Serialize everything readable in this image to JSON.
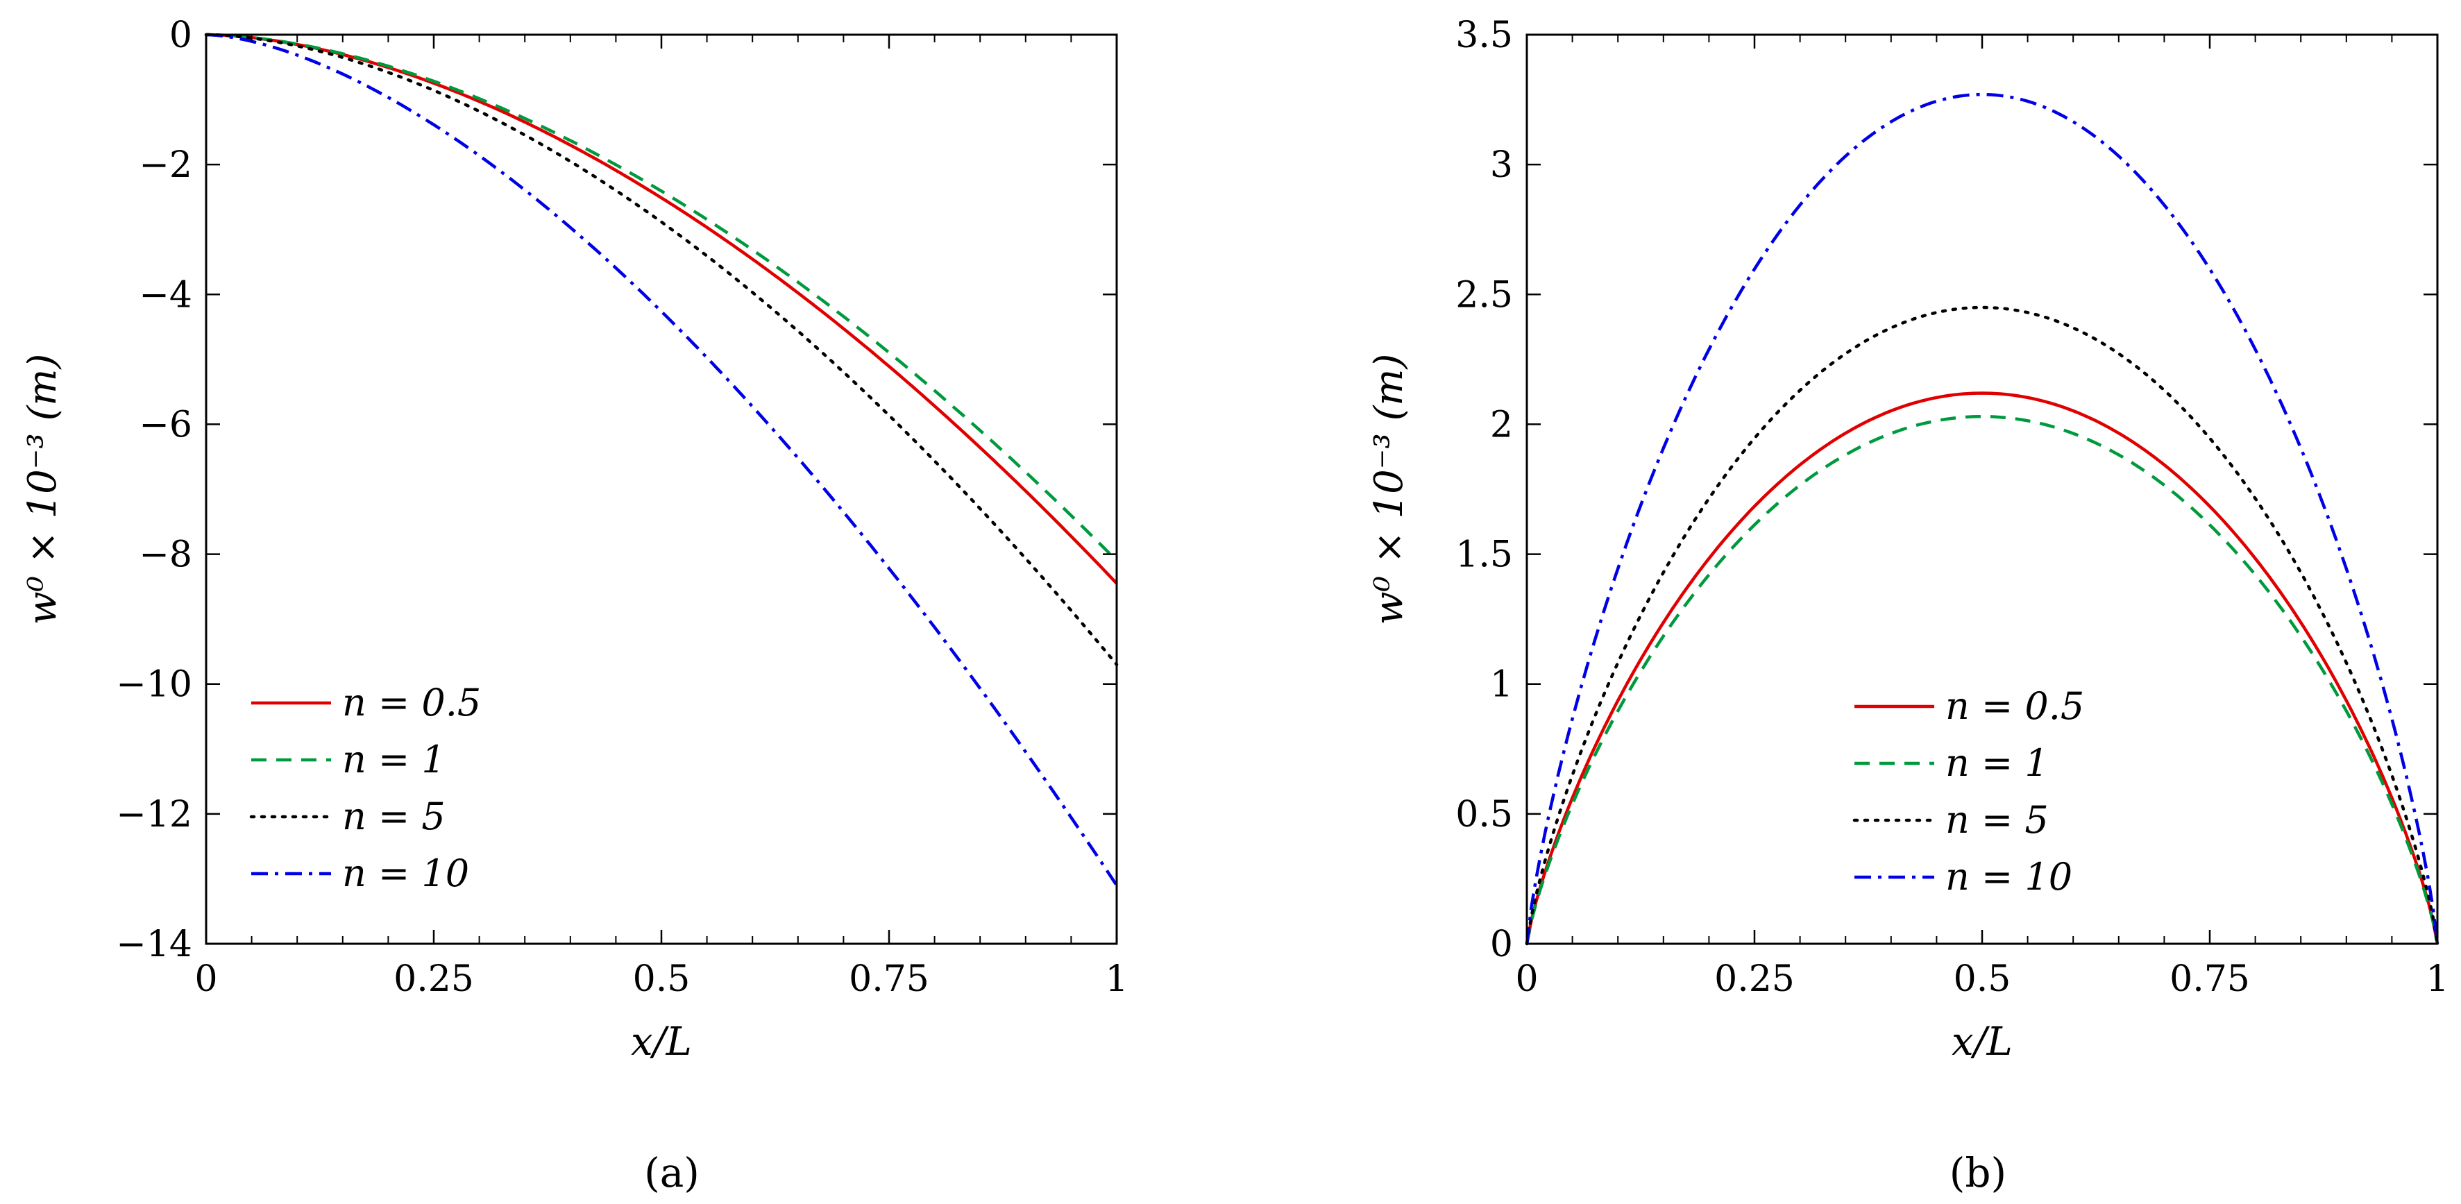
{
  "chart_data": [
    {
      "type": "line",
      "panel": "a",
      "caption": "(a)",
      "xlabel": "x/L",
      "ylabel": "w⁰ × 10⁻³ (m)",
      "xlim": [
        0,
        1
      ],
      "ylim": [
        -14,
        0
      ],
      "x_ticks": [
        0,
        0.25,
        0.5,
        0.75,
        1
      ],
      "x_tick_labels": [
        "0",
        "0.25",
        "0.5",
        "0.75",
        "1"
      ],
      "y_ticks": [
        0,
        -2,
        -4,
        -6,
        -8,
        -10,
        -12,
        -14
      ],
      "y_tick_labels": [
        "0",
        "−2",
        "−4",
        "−6",
        "−8",
        "−10",
        "−12",
        "−14"
      ],
      "legend_position": "bottom-left",
      "series": [
        {
          "name": "n = 0.5",
          "color": "#e00000",
          "style": "solid",
          "end_value": -8.45,
          "exponent": 1.75
        },
        {
          "name": "n = 1",
          "color": "#009a3e",
          "style": "dashed",
          "end_value": -8.1,
          "exponent": 1.75
        },
        {
          "name": "n = 5",
          "color": "#000000",
          "style": "dotted",
          "end_value": -9.7,
          "exponent": 1.75
        },
        {
          "name": "n = 10",
          "color": "#0000e6",
          "style": "dashdot",
          "end_value": -13.1,
          "exponent": 1.62
        }
      ]
    },
    {
      "type": "line",
      "panel": "b",
      "caption": "(b)",
      "xlabel": "x/L",
      "ylabel": "w⁰ × 10⁻³ (m)",
      "xlim": [
        0,
        1
      ],
      "ylim": [
        0,
        3.5
      ],
      "x_ticks": [
        0,
        0.25,
        0.5,
        0.75,
        1
      ],
      "x_tick_labels": [
        "0",
        "0.25",
        "0.5",
        "0.75",
        "1"
      ],
      "y_ticks": [
        0,
        0.5,
        1,
        1.5,
        2,
        2.5,
        3,
        3.5
      ],
      "y_tick_labels": [
        "0",
        "0.5",
        "1",
        "1.5",
        "2",
        "2.5",
        "3",
        "3.5"
      ],
      "legend_position": "bottom-center",
      "series": [
        {
          "name": "n = 0.5",
          "color": "#e00000",
          "style": "solid",
          "peak_value": 2.12,
          "peak_x": 0.5
        },
        {
          "name": "n = 1",
          "color": "#009a3e",
          "style": "dashed",
          "peak_value": 2.03,
          "peak_x": 0.5
        },
        {
          "name": "n = 5",
          "color": "#000000",
          "style": "dotted",
          "peak_value": 2.45,
          "peak_x": 0.5
        },
        {
          "name": "n = 10",
          "color": "#0000e6",
          "style": "dashdot",
          "peak_value": 3.27,
          "peak_x": 0.5
        }
      ]
    }
  ]
}
